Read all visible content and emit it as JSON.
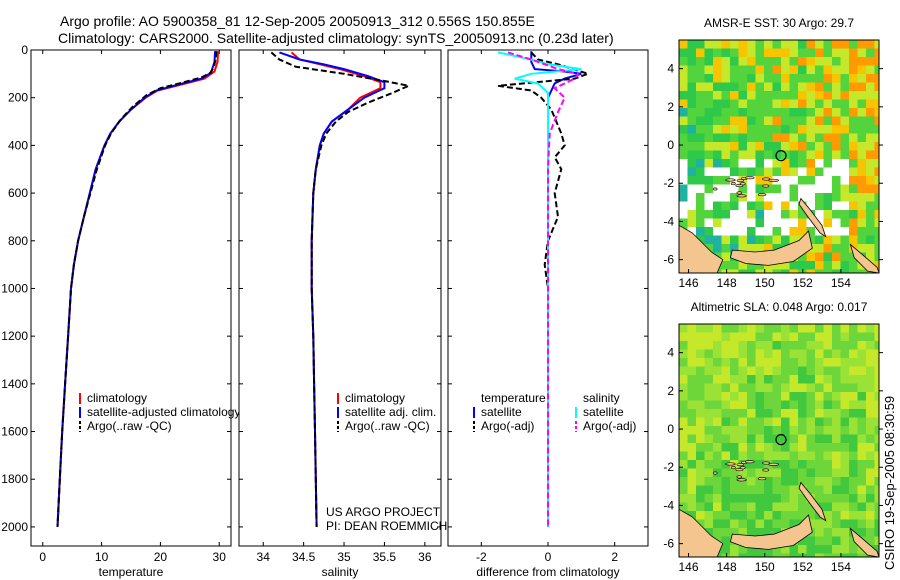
{
  "title_line1": "Argo profile: AO 5900358_81 12-Sep-2005 20050913_312 0.556S 150.855E",
  "title_line2": "Climatology: CARS2000. Satellite-adjusted climatology: synTS_20050913.nc (0.23d later)",
  "side_label": "CSIRO 19-Sep-2005 08:30:59",
  "colors": {
    "red": "#ff0000",
    "blue": "#0000ff",
    "black": "#000000",
    "cyan": "#00ffff",
    "magenta": "#ff00ff"
  },
  "chart_data": [
    {
      "type": "line",
      "panel": "temperature",
      "title": "",
      "xlabel": "temperature",
      "ylabel": "",
      "xlim": [
        -2,
        32
      ],
      "ylim": [
        2080,
        0
      ],
      "xticks": [
        0,
        10,
        20,
        30
      ],
      "yticks": [
        0,
        200,
        400,
        600,
        800,
        1000,
        1200,
        1400,
        1600,
        1800,
        2000
      ],
      "legend": [
        "climatology",
        "satellite-adjusted climatology",
        "Argo(..raw -QC)"
      ],
      "series": [
        {
          "name": "climatology",
          "color": "red",
          "dash": false,
          "points": [
            [
              29.8,
              5
            ],
            [
              29.7,
              50
            ],
            [
              29.2,
              90
            ],
            [
              27.5,
              120
            ],
            [
              23.5,
              145
            ],
            [
              19.5,
              170
            ],
            [
              17.5,
              200
            ],
            [
              15,
              250
            ],
            [
              13,
              300
            ],
            [
              11.5,
              350
            ],
            [
              10.5,
              400
            ],
            [
              9,
              500
            ],
            [
              8,
              600
            ],
            [
              7,
              700
            ],
            [
              6,
              800
            ],
            [
              5.3,
              900
            ],
            [
              4.8,
              1000
            ],
            [
              4.3,
              1200
            ],
            [
              3.8,
              1400
            ],
            [
              3.3,
              1600
            ],
            [
              2.9,
              1800
            ],
            [
              2.5,
              2000
            ]
          ]
        },
        {
          "name": "satellite-adjusted climatology",
          "color": "blue",
          "dash": false,
          "points": [
            [
              29.3,
              5
            ],
            [
              29.2,
              50
            ],
            [
              28.6,
              95
            ],
            [
              27,
              120
            ],
            [
              23,
              145
            ],
            [
              19.3,
              170
            ],
            [
              17.3,
              200
            ],
            [
              15,
              250
            ],
            [
              13,
              300
            ],
            [
              11.5,
              350
            ],
            [
              10.5,
              400
            ],
            [
              9,
              500
            ],
            [
              8,
              600
            ],
            [
              7,
              700
            ],
            [
              6,
              800
            ],
            [
              5.3,
              900
            ],
            [
              4.8,
              1000
            ],
            [
              4.3,
              1200
            ],
            [
              3.8,
              1400
            ],
            [
              3.3,
              1600
            ],
            [
              2.9,
              1800
            ],
            [
              2.5,
              2000
            ]
          ]
        },
        {
          "name": "Argo(..raw -QC)",
          "color": "black",
          "dash": true,
          "points": [
            [
              29.5,
              5
            ],
            [
              29.4,
              40
            ],
            [
              29,
              75
            ],
            [
              28.5,
              95
            ],
            [
              27,
              115
            ],
            [
              24,
              135
            ],
            [
              20,
              160
            ],
            [
              17.6,
              190
            ],
            [
              15.2,
              240
            ],
            [
              13.3,
              290
            ],
            [
              11.6,
              350
            ],
            [
              10.6,
              400
            ],
            [
              9.2,
              500
            ],
            [
              8.1,
              600
            ],
            [
              7,
              700
            ],
            [
              6,
              800
            ],
            [
              5.3,
              900
            ],
            [
              4.8,
              1000
            ],
            [
              4.3,
              1200
            ],
            [
              3.8,
              1400
            ],
            [
              3.3,
              1600
            ],
            [
              2.9,
              1800
            ],
            [
              2.5,
              2000
            ]
          ]
        }
      ]
    },
    {
      "type": "line",
      "panel": "salinity",
      "title": "",
      "xlabel": "salinity",
      "ylabel": "",
      "xlim": [
        33.7,
        36.2
      ],
      "ylim": [
        2080,
        0
      ],
      "xticks": [
        34,
        34.5,
        35,
        35.5,
        36
      ],
      "legend": [
        "climatology",
        "satellite adj. clim.",
        "Argo(..raw -QC)"
      ],
      "annotation": [
        "US ARGO PROJECT",
        "PI: DEAN ROEMMICH"
      ],
      "series": [
        {
          "name": "climatology",
          "color": "red",
          "dash": false,
          "points": [
            [
              34.35,
              10
            ],
            [
              34.45,
              40
            ],
            [
              34.7,
              60
            ],
            [
              34.95,
              80
            ],
            [
              35.25,
              110
            ],
            [
              35.45,
              135
            ],
            [
              35.45,
              160
            ],
            [
              35.2,
              200
            ],
            [
              35.05,
              250
            ],
            [
              34.85,
              300
            ],
            [
              34.75,
              350
            ],
            [
              34.7,
              400
            ],
            [
              34.65,
              500
            ],
            [
              34.62,
              600
            ],
            [
              34.6,
              800
            ],
            [
              34.6,
              1000
            ],
            [
              34.62,
              1200
            ],
            [
              34.63,
              1400
            ],
            [
              34.64,
              1600
            ],
            [
              34.65,
              1800
            ],
            [
              34.66,
              2000
            ]
          ]
        },
        {
          "name": "satellite adj. clim.",
          "color": "blue",
          "dash": false,
          "points": [
            [
              34.2,
              10
            ],
            [
              34.45,
              40
            ],
            [
              34.75,
              60
            ],
            [
              35,
              80
            ],
            [
              35.3,
              110
            ],
            [
              35.5,
              135
            ],
            [
              35.5,
              160
            ],
            [
              35.25,
              200
            ],
            [
              35.05,
              250
            ],
            [
              34.85,
              300
            ],
            [
              34.75,
              350
            ],
            [
              34.7,
              400
            ],
            [
              34.65,
              500
            ],
            [
              34.62,
              600
            ],
            [
              34.6,
              800
            ],
            [
              34.6,
              1000
            ],
            [
              34.62,
              1200
            ],
            [
              34.63,
              1400
            ],
            [
              34.64,
              1600
            ],
            [
              34.65,
              1800
            ],
            [
              34.66,
              2000
            ]
          ]
        },
        {
          "name": "Argo(..raw -QC)",
          "color": "black",
          "dash": true,
          "points": [
            [
              34.1,
              10
            ],
            [
              34.2,
              40
            ],
            [
              34.4,
              70
            ],
            [
              35.0,
              100
            ],
            [
              35.5,
              130
            ],
            [
              35.8,
              150
            ],
            [
              35.6,
              180
            ],
            [
              35.3,
              220
            ],
            [
              35.05,
              260
            ],
            [
              34.9,
              300
            ],
            [
              34.78,
              350
            ],
            [
              34.72,
              400
            ],
            [
              34.65,
              500
            ],
            [
              34.62,
              600
            ],
            [
              34.6,
              800
            ],
            [
              34.6,
              1000
            ],
            [
              34.62,
              1200
            ],
            [
              34.63,
              1400
            ],
            [
              34.64,
              1600
            ],
            [
              34.65,
              1800
            ],
            [
              34.66,
              2000
            ]
          ]
        }
      ]
    },
    {
      "type": "line",
      "panel": "difference",
      "title": "",
      "xlabel": "difference from climatology",
      "ylabel": "",
      "xlim": [
        -3,
        3
      ],
      "ylim": [
        2080,
        0
      ],
      "xticks": [
        -2,
        0,
        2
      ],
      "legend_temperature": [
        "temperature",
        "satellite",
        "Argo(-adj)"
      ],
      "legend_salinity": [
        "salinity",
        "satellite",
        "Argo(-adj)"
      ],
      "series": [
        {
          "name": "temperature satellite",
          "color": "blue",
          "dash": false,
          "points": [
            [
              -0.5,
              5
            ],
            [
              -0.5,
              50
            ],
            [
              -0.4,
              80
            ],
            [
              0.5,
              90
            ],
            [
              1,
              100
            ],
            [
              0.5,
              120
            ],
            [
              0.2,
              140
            ],
            [
              0,
              200
            ],
            [
              0,
              2000
            ]
          ]
        },
        {
          "name": "temperature Argo(-adj)",
          "color": "black",
          "dash": true,
          "points": [
            [
              -0.5,
              10
            ],
            [
              -0.3,
              40
            ],
            [
              0.3,
              60
            ],
            [
              1.2,
              100
            ],
            [
              0.8,
              120
            ],
            [
              -1.5,
              150
            ],
            [
              -0.5,
              170
            ],
            [
              -0.2,
              200
            ],
            [
              0.1,
              250
            ],
            [
              0.4,
              350
            ],
            [
              0.5,
              400
            ],
            [
              0.2,
              450
            ],
            [
              0.4,
              500
            ],
            [
              0.2,
              600
            ],
            [
              0.3,
              700
            ],
            [
              0,
              800
            ],
            [
              -0.1,
              900
            ],
            [
              0,
              1000
            ],
            [
              0,
              2000
            ]
          ]
        },
        {
          "name": "salinity satellite",
          "color": "cyan",
          "dash": false,
          "points": [
            [
              -1.5,
              10
            ],
            [
              -0.5,
              40
            ],
            [
              0,
              60
            ],
            [
              1,
              80
            ],
            [
              -0.5,
              100
            ],
            [
              -1,
              120
            ],
            [
              -0.3,
              140
            ],
            [
              0,
              180
            ],
            [
              0,
              2000
            ]
          ]
        },
        {
          "name": "salinity Argo(-adj)",
          "color": "magenta",
          "dash": true,
          "points": [
            [
              -1.2,
              10
            ],
            [
              -0.5,
              40
            ],
            [
              0.3,
              80
            ],
            [
              0.9,
              100
            ],
            [
              0.8,
              120
            ],
            [
              0.2,
              160
            ],
            [
              0.5,
              200
            ],
            [
              0.3,
              260
            ],
            [
              0.05,
              350
            ],
            [
              0,
              500
            ],
            [
              0,
              2000
            ]
          ]
        }
      ]
    },
    {
      "type": "heatmap",
      "panel": "sst-map",
      "title": "AMSR-E SST: 30 Argo: 29.7",
      "xlim": [
        145.5,
        156
      ],
      "ylim": [
        -6.7,
        5.5
      ],
      "xticks": [
        146,
        148,
        150,
        152,
        154
      ],
      "yticks": [
        4,
        2,
        0,
        -2,
        -4,
        -6
      ],
      "marker": [
        150.855,
        -0.556
      ]
    },
    {
      "type": "heatmap",
      "panel": "sla-map",
      "title": "Altimetric SLA: 0.048 Argo: 0.017",
      "xlim": [
        145.5,
        156
      ],
      "ylim": [
        -6.7,
        5.5
      ],
      "xticks": [
        146,
        148,
        150,
        152,
        154
      ],
      "yticks": [
        4,
        2,
        0,
        -2,
        -4,
        -6
      ],
      "marker": [
        150.855,
        -0.556
      ]
    }
  ]
}
